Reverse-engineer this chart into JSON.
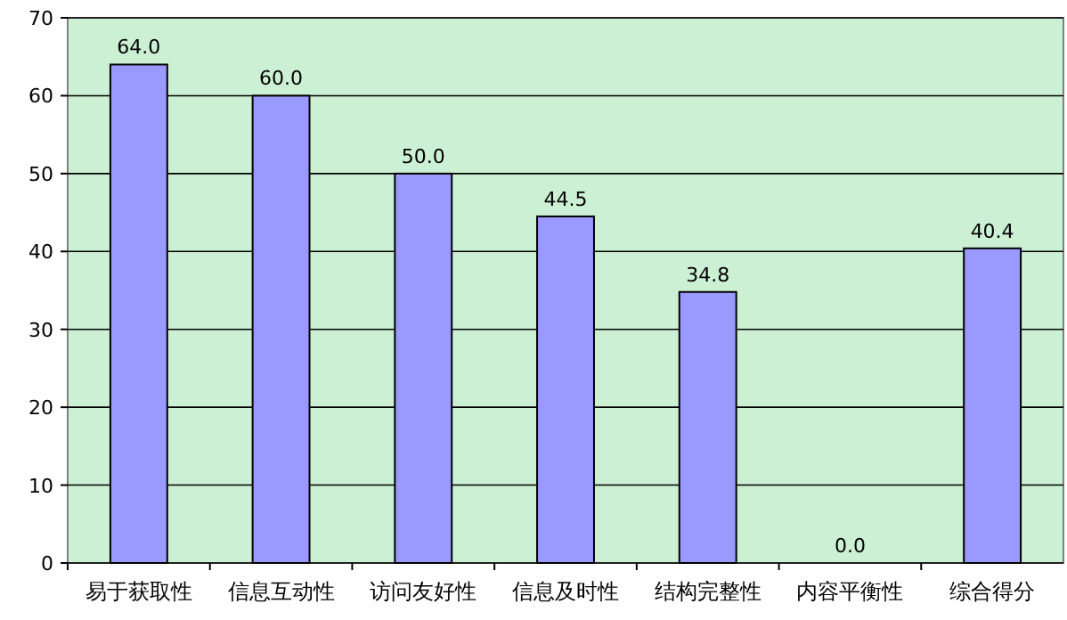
{
  "chart_data": {
    "type": "bar",
    "categories": [
      "易于获取性",
      "信息互动性",
      "访问友好性",
      "信息及时性",
      "结构完整性",
      "内容平衡性",
      "综合得分"
    ],
    "values": [
      64.0,
      60.0,
      50.0,
      44.5,
      34.8,
      0.0,
      40.4
    ],
    "value_labels": [
      "64.0",
      "60.0",
      "50.0",
      "44.5",
      "34.8",
      "0.0",
      "40.4"
    ],
    "color": "#9999ff",
    "ylim": [
      0,
      70
    ],
    "yticks": [
      0,
      10,
      20,
      30,
      40,
      50,
      60,
      70
    ],
    "grid": "y"
  }
}
